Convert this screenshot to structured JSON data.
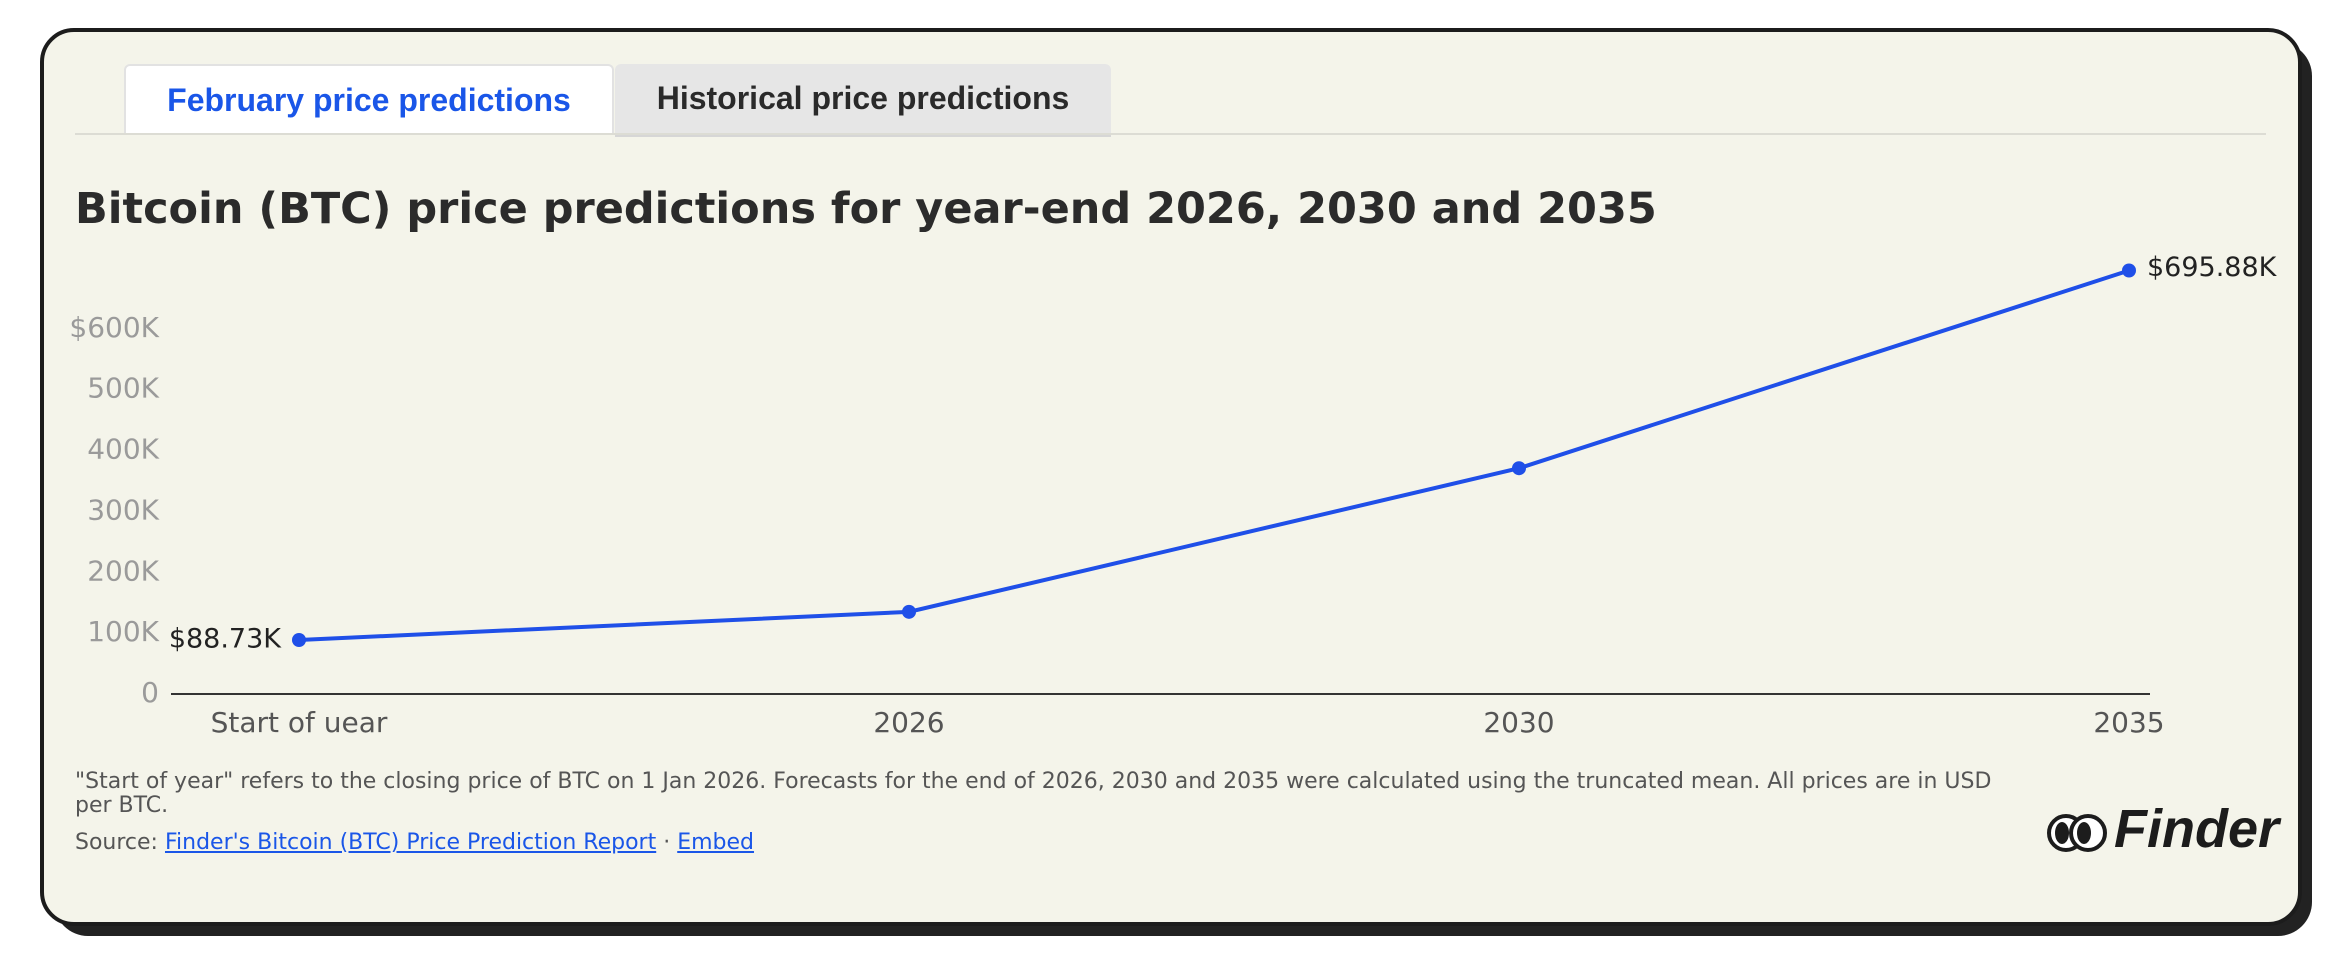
{
  "tabs": [
    "February price predictions",
    "Historical price predictions"
  ],
  "chart_data": {
    "type": "line",
    "title": "Bitcoin (BTC) price predictions for year-end 2026, 2030 and 2035",
    "categories": [
      "Start of uear",
      "2026",
      "2030",
      "2035"
    ],
    "values": [
      88730,
      135000,
      371000,
      695880
    ],
    "value_labels": [
      "$88.73K",
      null,
      null,
      "$695.88K"
    ],
    "color": "#1f4fe8",
    "ylim": [
      0,
      700000
    ],
    "yticks": [
      0,
      {
        "value": 100000,
        "label": "100K"
      },
      {
        "value": 200000,
        "label": "200K"
      },
      {
        "value": 300000,
        "label": "300K"
      },
      {
        "value": 400000,
        "label": "400K"
      },
      {
        "value": 500000,
        "label": "500K"
      },
      {
        "value": 600000,
        "label": "$600K"
      }
    ],
    "grid": false
  },
  "note": "\"Start of year\" refers to the closing price of BTC on 1 Jan 2026. Forecasts for the end of 2026, 2030 and 2035 were calculated using the truncated mean. All prices are in USD per BTC.",
  "source": {
    "label": "Source:",
    "link": "Finder's Bitcoin (BTC) Price Prediction Report",
    "separator": "·",
    "embed": "Embed"
  },
  "logo": "Finder"
}
